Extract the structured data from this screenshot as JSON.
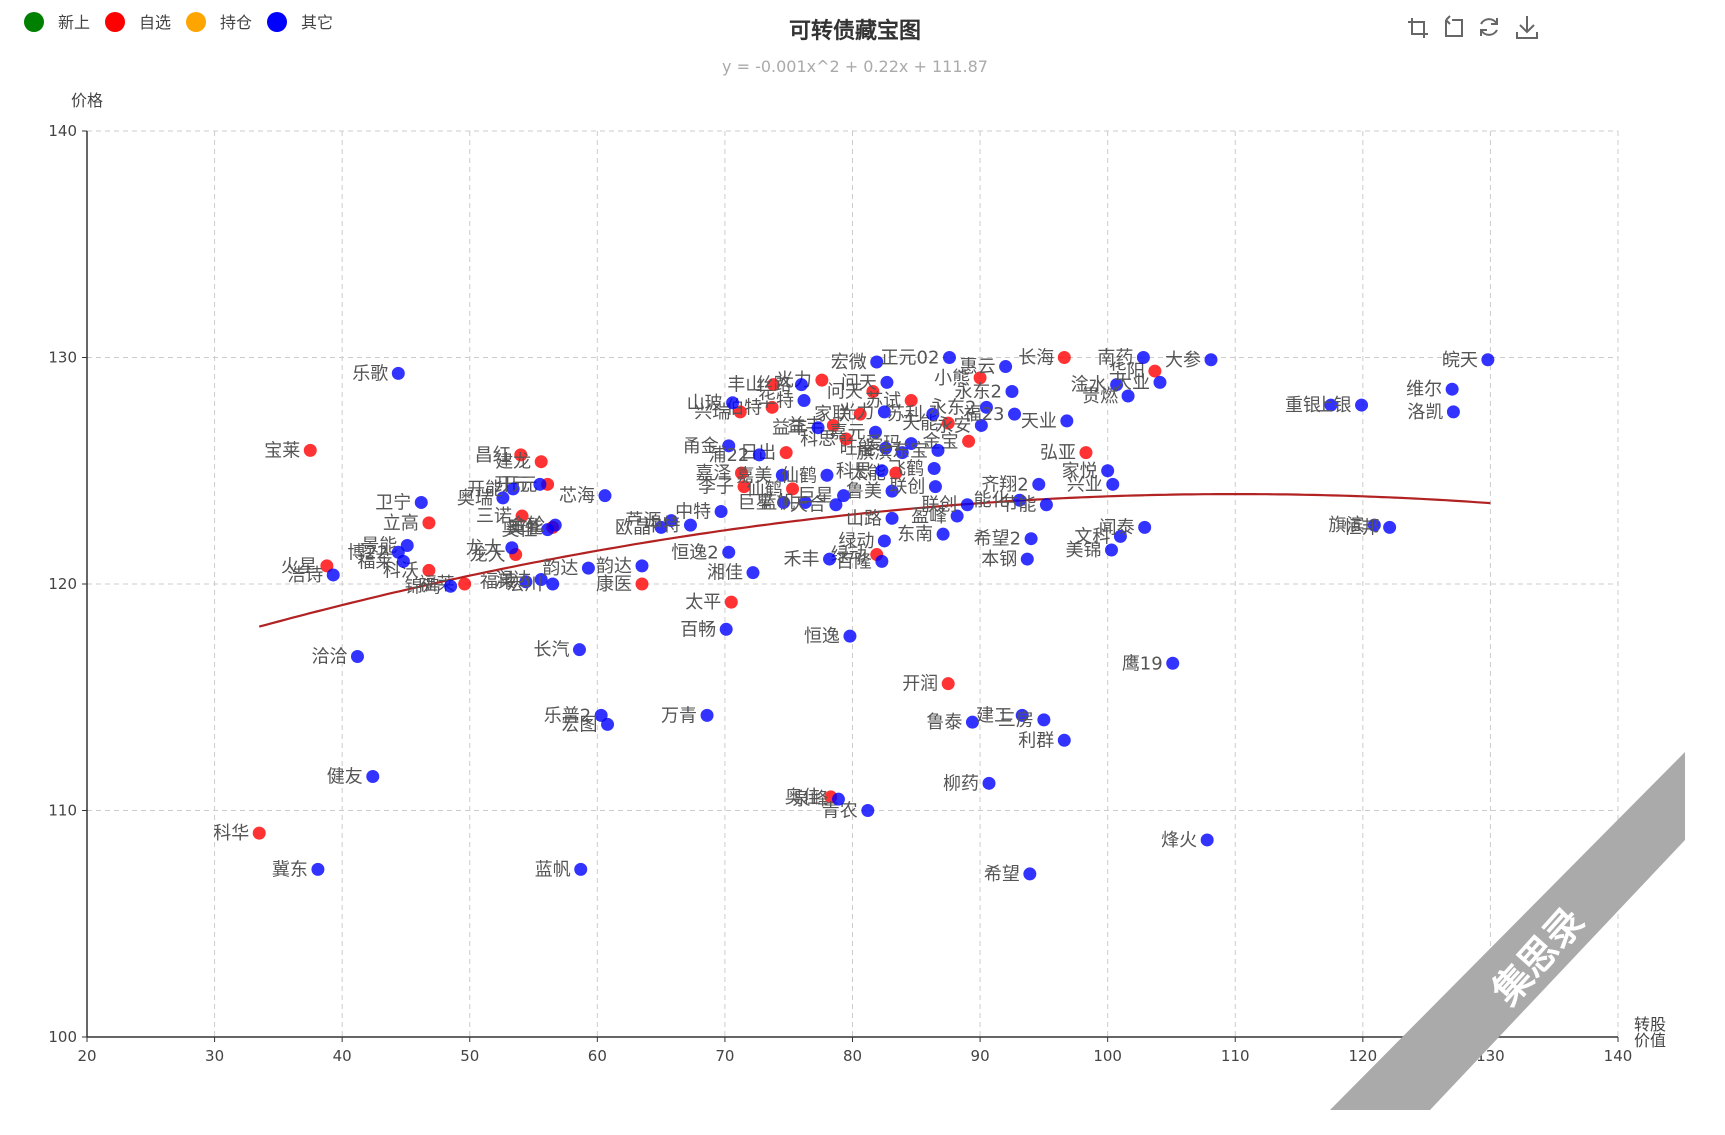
{
  "chart_data": {
    "type": "scatter",
    "title": "可转债藏宝图",
    "subtitle": "y = -0.001x^2 + 0.22x + 111.87",
    "xlabel": "转股\n价值",
    "ylabel": "价格",
    "xlim": [
      20,
      140
    ],
    "ylim": [
      100,
      140
    ],
    "xticks": [
      20,
      30,
      40,
      50,
      60,
      70,
      80,
      90,
      100,
      110,
      120,
      130,
      140
    ],
    "yticks": [
      100,
      110,
      120,
      130,
      140
    ],
    "grid": true,
    "legend_position": "top-left",
    "legend": [
      {
        "name": "新上",
        "color": "#008000"
      },
      {
        "name": "自选",
        "color": "#ff0000"
      },
      {
        "name": "持仓",
        "color": "#ffa500"
      },
      {
        "name": "其它",
        "color": "#0000ff"
      }
    ],
    "trendline": {
      "a": -0.001,
      "b": 0.22,
      "c": 111.87,
      "x_range": [
        33.5,
        130
      ],
      "color": "#b22222"
    },
    "series": [
      {
        "name": "自选",
        "color": "#ff0000",
        "points": [
          {
            "x": 37.5,
            "y": 125.9,
            "label": "宝莱"
          },
          {
            "x": 33.5,
            "y": 109.0,
            "label": "科华"
          },
          {
            "x": 38.8,
            "y": 120.8,
            "label": "火星"
          },
          {
            "x": 46.8,
            "y": 122.7,
            "label": "立高"
          },
          {
            "x": 46.8,
            "y": 120.6,
            "label": "科沃"
          },
          {
            "x": 49.6,
            "y": 120.0,
            "label": "福莱"
          },
          {
            "x": 54.0,
            "y": 125.7,
            "label": "昌红"
          },
          {
            "x": 55.6,
            "y": 125.4,
            "label": "建龙"
          },
          {
            "x": 56.1,
            "y": 124.4,
            "label": "开元"
          },
          {
            "x": 54.1,
            "y": 123.0,
            "label": "三诺"
          },
          {
            "x": 56.5,
            "y": 122.5,
            "label": "奥佳"
          },
          {
            "x": 53.6,
            "y": 121.3,
            "label": "龙大"
          },
          {
            "x": 63.5,
            "y": 120.0,
            "label": "康医"
          },
          {
            "x": 70.5,
            "y": 119.2,
            "label": "太平"
          },
          {
            "x": 71.2,
            "y": 127.6,
            "label": "兴瑞"
          },
          {
            "x": 73.8,
            "y": 128.8,
            "label": "丰山"
          },
          {
            "x": 73.7,
            "y": 127.8,
            "label": "伯特"
          },
          {
            "x": 71.3,
            "y": 124.9,
            "label": "嘉泽"
          },
          {
            "x": 71.5,
            "y": 124.3,
            "label": "李子"
          },
          {
            "x": 74.8,
            "y": 125.8,
            "label": "日出"
          },
          {
            "x": 75.3,
            "y": 124.2,
            "label": "仙鹤"
          },
          {
            "x": 77.6,
            "y": 129.0,
            "label": "光力"
          },
          {
            "x": 78.5,
            "y": 127.0,
            "label": "益丰"
          },
          {
            "x": 79.5,
            "y": 126.4,
            "label": "科思"
          },
          {
            "x": 81.6,
            "y": 128.5,
            "label": "问天"
          },
          {
            "x": 80.6,
            "y": 127.5,
            "label": "家联"
          },
          {
            "x": 83.4,
            "y": 124.9,
            "label": "太能"
          },
          {
            "x": 84.6,
            "y": 128.1,
            "label": "苏试"
          },
          {
            "x": 87.5,
            "y": 127.1,
            "label": "天能"
          },
          {
            "x": 89.1,
            "y": 126.3,
            "label": "金宝"
          },
          {
            "x": 90.0,
            "y": 129.1,
            "label": "小熊"
          },
          {
            "x": 81.9,
            "y": 121.3,
            "label": "绿动"
          },
          {
            "x": 87.5,
            "y": 115.6,
            "label": "开润"
          },
          {
            "x": 78.3,
            "y": 110.6,
            "label": "奥佳"
          },
          {
            "x": 96.6,
            "y": 130.0,
            "label": "长海"
          },
          {
            "x": 98.3,
            "y": 125.8,
            "label": "弘亚"
          },
          {
            "x": 103.7,
            "y": 129.4,
            "label": "华阳"
          }
        ]
      },
      {
        "name": "其它",
        "color": "#0000ff",
        "points": [
          {
            "x": 44.4,
            "y": 129.3,
            "label": "乐歌"
          },
          {
            "x": 46.2,
            "y": 123.6,
            "label": "卫宁"
          },
          {
            "x": 45.1,
            "y": 121.7,
            "label": "景能"
          },
          {
            "x": 44.4,
            "y": 121.4,
            "label": "博22"
          },
          {
            "x": 44.8,
            "y": 121.0,
            "label": "福莱"
          },
          {
            "x": 39.3,
            "y": 120.4,
            "label": "浩诗"
          },
          {
            "x": 48.5,
            "y": 119.9,
            "label": "锦鸡"
          },
          {
            "x": 41.2,
            "y": 116.8,
            "label": "洽洽"
          },
          {
            "x": 42.4,
            "y": 111.5,
            "label": "健友"
          },
          {
            "x": 38.1,
            "y": 107.4,
            "label": "冀东"
          },
          {
            "x": 52.6,
            "y": 123.8,
            "label": "奥瑞"
          },
          {
            "x": 53.4,
            "y": 124.2,
            "label": "开能"
          },
          {
            "x": 55.5,
            "y": 124.4,
            "label": "开元"
          },
          {
            "x": 60.6,
            "y": 123.9,
            "label": "芯海"
          },
          {
            "x": 56.1,
            "y": 122.4,
            "label": "奥佳"
          },
          {
            "x": 56.7,
            "y": 122.6,
            "label": "金轮"
          },
          {
            "x": 53.3,
            "y": 121.6,
            "label": "龙大"
          },
          {
            "x": 54.4,
            "y": 120.1,
            "label": "福莱"
          },
          {
            "x": 55.6,
            "y": 120.2,
            "label": "润达"
          },
          {
            "x": 56.5,
            "y": 120.0,
            "label": "宏川"
          },
          {
            "x": 59.3,
            "y": 120.7,
            "label": "韵达"
          },
          {
            "x": 63.5,
            "y": 120.8,
            "label": "韵达"
          },
          {
            "x": 58.6,
            "y": 117.1,
            "label": "长汽"
          },
          {
            "x": 60.3,
            "y": 114.2,
            "label": "乐普2"
          },
          {
            "x": 60.8,
            "y": 113.8,
            "label": "宏图"
          },
          {
            "x": 68.6,
            "y": 114.2,
            "label": "万青"
          },
          {
            "x": 58.7,
            "y": 107.4,
            "label": "蓝帆"
          },
          {
            "x": 65.0,
            "y": 122.5,
            "label": "欧晶"
          },
          {
            "x": 65.8,
            "y": 122.8,
            "label": "芦源"
          },
          {
            "x": 67.3,
            "y": 122.6,
            "label": "中特"
          },
          {
            "x": 69.7,
            "y": 123.2,
            "label": "中特"
          },
          {
            "x": 70.3,
            "y": 121.4,
            "label": "恒逸2"
          },
          {
            "x": 72.2,
            "y": 120.5,
            "label": "湘佳"
          },
          {
            "x": 70.1,
            "y": 118.0,
            "label": "百畅"
          },
          {
            "x": 70.3,
            "y": 126.1,
            "label": "甬金"
          },
          {
            "x": 72.7,
            "y": 125.7,
            "label": "浦22"
          },
          {
            "x": 70.6,
            "y": 128.0,
            "label": "山玻"
          },
          {
            "x": 76.0,
            "y": 128.8,
            "label": "丝路"
          },
          {
            "x": 76.2,
            "y": 128.1,
            "label": "华特"
          },
          {
            "x": 74.5,
            "y": 124.8,
            "label": "嘉美"
          },
          {
            "x": 74.6,
            "y": 123.6,
            "label": "巨星"
          },
          {
            "x": 76.3,
            "y": 123.6,
            "label": "蓝帆"
          },
          {
            "x": 77.3,
            "y": 126.9,
            "label": "益丰"
          },
          {
            "x": 78.0,
            "y": 124.8,
            "label": "仙鹤"
          },
          {
            "x": 78.7,
            "y": 123.5,
            "label": "天合"
          },
          {
            "x": 79.3,
            "y": 123.9,
            "label": "巨星"
          },
          {
            "x": 79.8,
            "y": 117.7,
            "label": "恒逸"
          },
          {
            "x": 82.5,
            "y": 121.9,
            "label": "绿动"
          },
          {
            "x": 78.2,
            "y": 121.1,
            "label": "禾丰"
          },
          {
            "x": 82.3,
            "y": 121.0,
            "label": "百隆"
          },
          {
            "x": 81.9,
            "y": 129.8,
            "label": "宏微"
          },
          {
            "x": 82.7,
            "y": 128.9,
            "label": "问天"
          },
          {
            "x": 82.5,
            "y": 127.6,
            "label": "光力"
          },
          {
            "x": 81.8,
            "y": 126.7,
            "label": "嘉元"
          },
          {
            "x": 82.6,
            "y": 126.0,
            "label": "旺能"
          },
          {
            "x": 83.9,
            "y": 125.8,
            "label": "旗滨"
          },
          {
            "x": 82.3,
            "y": 125.0,
            "label": "科思"
          },
          {
            "x": 83.1,
            "y": 124.1,
            "label": "鲁美"
          },
          {
            "x": 83.1,
            "y": 122.9,
            "label": "山路"
          },
          {
            "x": 84.6,
            "y": 126.2,
            "label": "爱玛"
          },
          {
            "x": 86.4,
            "y": 125.1,
            "label": "飞鹤"
          },
          {
            "x": 86.5,
            "y": 124.3,
            "label": "联创"
          },
          {
            "x": 88.2,
            "y": 123.0,
            "label": "盈峰"
          },
          {
            "x": 87.1,
            "y": 122.2,
            "label": "东南"
          },
          {
            "x": 89.0,
            "y": 123.5,
            "label": "联创"
          },
          {
            "x": 87.6,
            "y": 130.0,
            "label": "正元02"
          },
          {
            "x": 86.3,
            "y": 127.5,
            "label": "苏利"
          },
          {
            "x": 86.7,
            "y": 125.9,
            "label": "东宝"
          },
          {
            "x": 90.1,
            "y": 127.0,
            "label": "永安"
          },
          {
            "x": 90.5,
            "y": 127.8,
            "label": "永东2"
          },
          {
            "x": 89.4,
            "y": 113.9,
            "label": "鲁泰"
          },
          {
            "x": 90.7,
            "y": 111.2,
            "label": "柳药"
          },
          {
            "x": 92.0,
            "y": 129.6,
            "label": "惠云"
          },
          {
            "x": 92.5,
            "y": 128.5,
            "label": "永东2"
          },
          {
            "x": 92.7,
            "y": 127.5,
            "label": "福23"
          },
          {
            "x": 93.1,
            "y": 123.7,
            "label": "能化"
          },
          {
            "x": 94.6,
            "y": 124.4,
            "label": "齐翔2"
          },
          {
            "x": 95.2,
            "y": 123.5,
            "label": "节能"
          },
          {
            "x": 94.0,
            "y": 122.0,
            "label": "希望2"
          },
          {
            "x": 93.7,
            "y": 121.1,
            "label": "本钢"
          },
          {
            "x": 93.3,
            "y": 114.2,
            "label": "建工"
          },
          {
            "x": 95.0,
            "y": 114.0,
            "label": "三房"
          },
          {
            "x": 96.6,
            "y": 113.1,
            "label": "利群"
          },
          {
            "x": 96.8,
            "y": 127.2,
            "label": "天业"
          },
          {
            "x": 100.0,
            "y": 125.0,
            "label": "家悦"
          },
          {
            "x": 100.4,
            "y": 124.4,
            "label": "兴业"
          },
          {
            "x": 102.8,
            "y": 130.0,
            "label": "南药"
          },
          {
            "x": 100.7,
            "y": 128.8,
            "label": "淦水"
          },
          {
            "x": 101.6,
            "y": 128.3,
            "label": "贵燃"
          },
          {
            "x": 104.1,
            "y": 128.9,
            "label": "大业"
          },
          {
            "x": 108.1,
            "y": 129.9,
            "label": "大参"
          },
          {
            "x": 101.0,
            "y": 122.1,
            "label": "文科"
          },
          {
            "x": 102.9,
            "y": 122.5,
            "label": "闻泰"
          },
          {
            "x": 100.3,
            "y": 121.5,
            "label": "美锦"
          },
          {
            "x": 105.1,
            "y": 116.5,
            "label": "鹰19"
          },
          {
            "x": 107.8,
            "y": 108.7,
            "label": "烽火"
          },
          {
            "x": 93.9,
            "y": 107.2,
            "label": "希望"
          },
          {
            "x": 81.2,
            "y": 110.0,
            "label": "青农"
          },
          {
            "x": 78.9,
            "y": 110.5,
            "label": "泉峰"
          },
          {
            "x": 117.5,
            "y": 127.9,
            "label": "重银"
          },
          {
            "x": 119.9,
            "y": 127.9,
            "label": "上银"
          },
          {
            "x": 127.0,
            "y": 128.6,
            "label": "维尔"
          },
          {
            "x": 127.1,
            "y": 127.6,
            "label": "洛凯"
          },
          {
            "x": 120.9,
            "y": 122.6,
            "label": "旗滨"
          },
          {
            "x": 122.1,
            "y": 122.5,
            "label": "恒邦"
          },
          {
            "x": 129.8,
            "y": 129.9,
            "label": "皖天"
          }
        ]
      }
    ]
  },
  "toolbox": [
    {
      "icon": "zoom-icon"
    },
    {
      "icon": "zoom-reset-icon"
    },
    {
      "icon": "refresh-icon"
    },
    {
      "icon": "download-icon"
    }
  ],
  "watermark": {
    "text": "集思录"
  }
}
